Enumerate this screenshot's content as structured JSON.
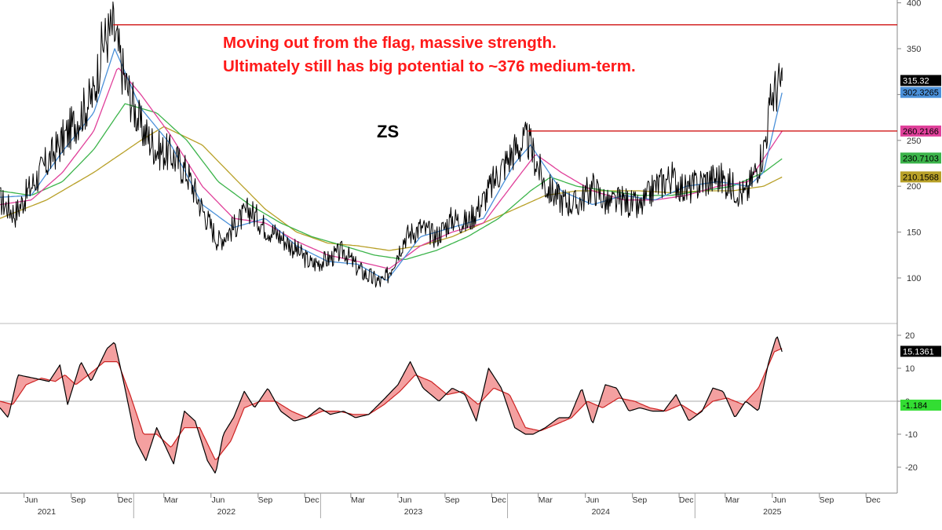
{
  "annotation": {
    "line1": "Moving out from the flag, massive strength.",
    "line2": "Ultimately still has big potential to ~376 medium-term."
  },
  "ticker": "ZS",
  "chart_data": [
    {
      "type": "line",
      "panel": "price",
      "title": "ZS",
      "y_axis_side": "right",
      "ylim": [
        60,
        400
      ],
      "y_ticks": [
        100,
        150,
        200,
        250,
        300,
        350,
        400
      ],
      "x_months": [
        "Jun",
        "Sep",
        "Dec",
        "Mar",
        "Jun",
        "Sep",
        "Dec",
        "Mar",
        "Jun",
        "Sep",
        "Dec",
        "Mar",
        "Jun",
        "Sep",
        "Dec",
        "Mar",
        "Jun",
        "Sep",
        "Dec"
      ],
      "x_years": [
        "2021",
        "2022",
        "2023",
        "2024",
        "2025"
      ],
      "xlim": [
        "2021-04-15",
        "2026-01-31"
      ],
      "series": [
        {
          "color": "#000000",
          "x": [
            "2021-04-15",
            "2021-05-15",
            "2021-06-15",
            "2021-07-15",
            "2021-08-15",
            "2021-09-15",
            "2021-10-15",
            "2021-11-01",
            "2021-11-22",
            "2021-12-15",
            "2022-01-15",
            "2022-02-15",
            "2022-03-15",
            "2022-04-15",
            "2022-05-15",
            "2022-06-15",
            "2022-07-15",
            "2022-08-15",
            "2022-09-15",
            "2022-10-15",
            "2022-11-15",
            "2022-12-15",
            "2023-01-15",
            "2023-02-15",
            "2023-03-15",
            "2023-04-15",
            "2023-05-05",
            "2023-06-15",
            "2023-07-15",
            "2023-08-15",
            "2023-09-15",
            "2023-10-15",
            "2023-11-15",
            "2023-12-15",
            "2024-01-15",
            "2024-02-10",
            "2024-03-15",
            "2024-04-15",
            "2024-05-15",
            "2024-06-15",
            "2024-07-15",
            "2024-08-15",
            "2024-09-15",
            "2024-10-15",
            "2024-11-15",
            "2024-12-15",
            "2025-01-15",
            "2025-02-15",
            "2025-03-15",
            "2025-04-10",
            "2025-05-15",
            "2025-06-01",
            "2025-06-20"
          ],
          "values": [
            185,
            170,
            200,
            225,
            250,
            275,
            300,
            355,
            373,
            315,
            265,
            240,
            235,
            215,
            175,
            140,
            155,
            175,
            155,
            145,
            130,
            115,
            120,
            130,
            110,
            98,
            95,
            145,
            155,
            145,
            165,
            160,
            185,
            215,
            240,
            250,
            200,
            185,
            180,
            200,
            180,
            185,
            175,
            200,
            210,
            195,
            205,
            210,
            200,
            190,
            240,
            300,
            315
          ]
        },
        {
          "color": "#4a90d9",
          "x": [
            "2021-04-15",
            "2021-06-15",
            "2021-08-15",
            "2021-10-15",
            "2021-11-25",
            "2022-01-15",
            "2022-03-15",
            "2022-05-15",
            "2022-07-15",
            "2022-09-15",
            "2022-11-15",
            "2023-01-15",
            "2023-03-15",
            "2023-05-10",
            "2023-07-15",
            "2023-09-15",
            "2023-11-15",
            "2024-01-15",
            "2024-02-15",
            "2024-04-15",
            "2024-06-15",
            "2024-08-15",
            "2024-10-15",
            "2024-12-15",
            "2025-02-15",
            "2025-04-15",
            "2025-05-15",
            "2025-06-20"
          ],
          "values": [
            188,
            190,
            238,
            280,
            350,
            285,
            245,
            180,
            155,
            165,
            135,
            118,
            115,
            97,
            145,
            155,
            165,
            225,
            245,
            195,
            180,
            190,
            185,
            200,
            205,
            200,
            215,
            302
          ]
        },
        {
          "color": "#e0409a",
          "x": [
            "2021-04-15",
            "2021-06-15",
            "2021-08-15",
            "2021-10-15",
            "2021-12-01",
            "2022-01-15",
            "2022-03-15",
            "2022-05-15",
            "2022-07-15",
            "2022-09-15",
            "2022-11-15",
            "2023-01-15",
            "2023-03-15",
            "2023-05-15",
            "2023-07-15",
            "2023-09-15",
            "2023-11-15",
            "2024-01-15",
            "2024-02-25",
            "2024-04-15",
            "2024-06-15",
            "2024-08-15",
            "2024-10-15",
            "2024-12-15",
            "2025-02-15",
            "2025-04-15",
            "2025-06-20"
          ],
          "values": [
            180,
            185,
            215,
            260,
            330,
            300,
            255,
            200,
            165,
            160,
            140,
            125,
            118,
            110,
            135,
            150,
            160,
            205,
            235,
            215,
            195,
            185,
            185,
            190,
            200,
            205,
            260
          ]
        },
        {
          "color": "#3cb44b",
          "x": [
            "2021-04-15",
            "2021-06-15",
            "2021-08-15",
            "2021-10-15",
            "2021-12-15",
            "2022-02-15",
            "2022-04-15",
            "2022-06-15",
            "2022-08-15",
            "2022-10-15",
            "2022-12-15",
            "2023-02-15",
            "2023-04-15",
            "2023-06-15",
            "2023-08-15",
            "2023-10-15",
            "2023-12-15",
            "2024-02-15",
            "2024-03-25",
            "2024-05-15",
            "2024-07-15",
            "2024-09-15",
            "2024-11-15",
            "2025-01-15",
            "2025-03-15",
            "2025-05-15",
            "2025-06-20"
          ],
          "values": [
            195,
            190,
            205,
            240,
            290,
            280,
            250,
            205,
            180,
            160,
            145,
            135,
            125,
            120,
            130,
            145,
            165,
            195,
            210,
            200,
            195,
            190,
            190,
            195,
            200,
            215,
            230
          ]
        },
        {
          "color": "#b8a028",
          "x": [
            "2021-04-15",
            "2021-07-15",
            "2021-10-15",
            "2022-01-15",
            "2022-03-01",
            "2022-05-15",
            "2022-07-15",
            "2022-09-15",
            "2022-11-15",
            "2023-01-15",
            "2023-03-15",
            "2023-05-15",
            "2023-07-15",
            "2023-09-15",
            "2023-11-15",
            "2024-01-15",
            "2024-03-15",
            "2024-05-15",
            "2024-07-15",
            "2024-09-15",
            "2024-11-15",
            "2025-01-15",
            "2025-03-15",
            "2025-05-15",
            "2025-06-20"
          ],
          "values": [
            165,
            185,
            215,
            250,
            265,
            245,
            210,
            175,
            150,
            138,
            135,
            130,
            135,
            145,
            160,
            175,
            190,
            195,
            195,
            195,
            193,
            195,
            195,
            200,
            210
          ]
        }
      ],
      "hlines": [
        {
          "value": 376,
          "from": "2021-11-22",
          "color": "#cc0000"
        },
        {
          "value": 260.2,
          "from": "2024-02-10",
          "color": "#cc0000"
        }
      ],
      "value_labels": [
        {
          "text": "315.32",
          "value": 315.32,
          "bg": "#000000",
          "fg": "#ffffff"
        },
        {
          "text": "302.3265",
          "value": 302.3265,
          "bg": "#4a90d9",
          "fg": "#000000"
        },
        {
          "text": "260.2166",
          "value": 260.2166,
          "bg": "#e0409a",
          "fg": "#000000"
        },
        {
          "text": "230.7103",
          "value": 230.7103,
          "bg": "#3cb44b",
          "fg": "#000000"
        },
        {
          "text": "210.1568",
          "value": 210.1568,
          "bg": "#b8a028",
          "fg": "#000000"
        }
      ]
    },
    {
      "type": "line",
      "panel": "oscillator",
      "y_axis_side": "right",
      "ylim": [
        -27,
        23
      ],
      "y_ticks": [
        -20,
        -10,
        0,
        10,
        20
      ],
      "zero_line": 0,
      "fill_between": {
        "color": "#f08080"
      },
      "series": [
        {
          "color": "#000000",
          "x": [
            "2021-04-15",
            "2021-05-01",
            "2021-05-20",
            "2021-06-20",
            "2021-07-20",
            "2021-08-10",
            "2021-08-25",
            "2021-09-20",
            "2021-10-10",
            "2021-11-10",
            "2021-11-25",
            "2021-12-15",
            "2022-01-05",
            "2022-01-25",
            "2022-02-15",
            "2022-03-05",
            "2022-03-20",
            "2022-04-10",
            "2022-05-01",
            "2022-05-25",
            "2022-06-10",
            "2022-06-25",
            "2022-07-15",
            "2022-08-05",
            "2022-08-25",
            "2022-09-20",
            "2022-10-15",
            "2022-11-10",
            "2022-12-05",
            "2022-12-30",
            "2023-01-20",
            "2023-02-15",
            "2023-03-10",
            "2023-04-05",
            "2023-05-01",
            "2023-06-01",
            "2023-06-25",
            "2023-07-20",
            "2023-08-20",
            "2023-09-15",
            "2023-10-10",
            "2023-11-01",
            "2023-11-25",
            "2023-12-20",
            "2024-01-15",
            "2024-02-05",
            "2024-02-20",
            "2024-03-15",
            "2024-04-10",
            "2024-05-01",
            "2024-05-25",
            "2024-06-15",
            "2024-07-10",
            "2024-08-01",
            "2024-08-25",
            "2024-09-15",
            "2024-10-10",
            "2024-11-01",
            "2024-11-25",
            "2024-12-20",
            "2025-01-15",
            "2025-02-05",
            "2025-02-25",
            "2025-03-20",
            "2025-04-10",
            "2025-05-05",
            "2025-05-25",
            "2025-06-10",
            "2025-06-20"
          ],
          "values": [
            -2,
            -5,
            8,
            7,
            6,
            11,
            -1,
            12,
            6,
            16,
            18,
            4,
            -12,
            -18,
            -8,
            -14,
            -19,
            -3,
            -6,
            -18,
            -22,
            -10,
            -5,
            3,
            -2,
            4,
            -3,
            -6,
            -5,
            -2,
            -4,
            -3,
            -5,
            -4,
            0,
            5,
            12,
            4,
            0,
            4,
            2,
            -6,
            10,
            4,
            -8,
            -10,
            -10,
            -8,
            -5,
            -5,
            4,
            -7,
            5,
            4,
            -3,
            -2,
            -3,
            -3,
            2,
            -6,
            -3,
            4,
            3,
            -5,
            0,
            -3,
            12,
            20,
            15
          ]
        },
        {
          "color": "#cc2222",
          "x": [
            "2021-04-15",
            "2021-05-10",
            "2021-06-05",
            "2021-07-05",
            "2021-08-01",
            "2021-08-20",
            "2021-09-10",
            "2021-10-05",
            "2021-11-05",
            "2021-12-01",
            "2021-12-25",
            "2022-01-20",
            "2022-02-15",
            "2022-03-15",
            "2022-04-10",
            "2022-05-10",
            "2022-06-10",
            "2022-07-10",
            "2022-08-05",
            "2022-09-05",
            "2022-10-05",
            "2022-11-05",
            "2022-12-05",
            "2023-01-05",
            "2023-02-05",
            "2023-03-05",
            "2023-04-05",
            "2023-05-05",
            "2023-06-05",
            "2023-07-05",
            "2023-08-05",
            "2023-09-05",
            "2023-10-05",
            "2023-11-05",
            "2023-12-05",
            "2024-01-05",
            "2024-02-05",
            "2024-03-05",
            "2024-04-05",
            "2024-05-05",
            "2024-06-05",
            "2024-07-05",
            "2024-08-05",
            "2024-09-05",
            "2024-10-05",
            "2024-11-05",
            "2024-12-05",
            "2025-01-05",
            "2025-02-05",
            "2025-03-05",
            "2025-04-05",
            "2025-05-05",
            "2025-06-05",
            "2025-06-20"
          ],
          "values": [
            0,
            -1,
            5,
            7,
            6,
            8,
            5,
            8,
            12,
            12,
            2,
            -10,
            -10,
            -14,
            -8,
            -8,
            -18,
            -12,
            -2,
            0,
            0,
            -3,
            -5,
            -3,
            -3,
            -4,
            -4,
            -1,
            3,
            8,
            6,
            2,
            3,
            -1,
            4,
            2,
            -8,
            -9,
            -7,
            -5,
            0,
            -2,
            1,
            0,
            -2,
            -3,
            -1,
            -4,
            0,
            1,
            -1,
            4,
            15,
            16
          ]
        }
      ],
      "value_labels": [
        {
          "text": "15.1361",
          "value": 15.1361,
          "bg": "#000000",
          "fg": "#ffffff"
        },
        {
          "text": "-1.184",
          "value": -1.184,
          "bg": "#33dd33",
          "fg": "#000000"
        }
      ]
    }
  ]
}
